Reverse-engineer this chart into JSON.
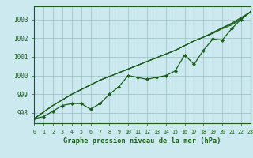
{
  "hours": [
    0,
    1,
    2,
    3,
    4,
    5,
    6,
    7,
    8,
    9,
    10,
    11,
    12,
    13,
    14,
    15,
    16,
    17,
    18,
    19,
    20,
    21,
    22,
    23
  ],
  "line_main": [
    997.7,
    997.8,
    998.1,
    998.4,
    998.5,
    998.5,
    998.2,
    998.5,
    999.0,
    999.4,
    1000.0,
    999.9,
    999.8,
    999.9,
    1000.0,
    1000.25,
    1001.1,
    1000.6,
    1001.35,
    1001.95,
    1001.9,
    1002.5,
    1003.0,
    1003.4
  ],
  "line_ref1": [
    997.7,
    998.05,
    998.4,
    998.7,
    999.0,
    999.25,
    999.5,
    999.75,
    999.95,
    1000.15,
    1000.35,
    1000.55,
    1000.75,
    1000.95,
    1001.15,
    1001.35,
    1001.6,
    1001.85,
    1002.05,
    1002.25,
    1002.5,
    1002.7,
    1003.0,
    1003.4
  ],
  "line_ref2": [
    997.7,
    998.05,
    998.4,
    998.7,
    999.0,
    999.25,
    999.5,
    999.75,
    999.95,
    1000.15,
    1000.35,
    1000.55,
    1000.75,
    1000.95,
    1001.15,
    1001.35,
    1001.6,
    1001.85,
    1002.05,
    1002.3,
    1002.55,
    1002.75,
    1003.05,
    1003.4
  ],
  "line_ref3": [
    997.7,
    998.05,
    998.4,
    998.7,
    999.0,
    999.25,
    999.5,
    999.75,
    999.95,
    1000.15,
    1000.35,
    1000.55,
    1000.75,
    1000.95,
    1001.15,
    1001.35,
    1001.6,
    1001.85,
    1002.05,
    1002.3,
    1002.55,
    1002.8,
    1003.1,
    1003.4
  ],
  "ylim": [
    997.45,
    1003.7
  ],
  "yticks": [
    998,
    999,
    1000,
    1001,
    1002,
    1003
  ],
  "xlim": [
    0,
    23
  ],
  "xticks": [
    0,
    1,
    2,
    3,
    4,
    5,
    6,
    7,
    8,
    9,
    10,
    11,
    12,
    13,
    14,
    15,
    16,
    17,
    18,
    19,
    20,
    21,
    22,
    23
  ],
  "xlabel": "Graphe pression niveau de la mer (hPa)",
  "line_color": "#1a5c1a",
  "bg_color": "#cce9f0",
  "grid_color": "#9abfbf",
  "axis_color": "#1a5c1a",
  "text_color": "#1a5c1a"
}
